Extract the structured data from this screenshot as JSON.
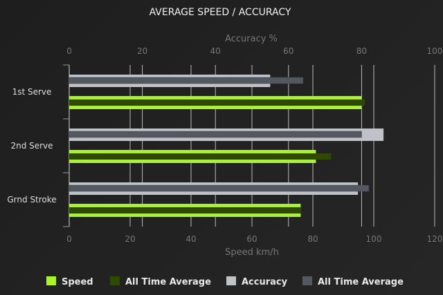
{
  "chart_data": {
    "type": "bar",
    "orientation": "horizontal",
    "title": "AVERAGE SPEED / ACCURACY",
    "categories": [
      "1st Serve",
      "2nd Serve",
      "Grnd Stroke"
    ],
    "x_bottom": {
      "label": "Speed km/h",
      "range": [
        0,
        120
      ],
      "ticks": [
        "0",
        "20",
        "40",
        "60",
        "80",
        "100",
        "120"
      ]
    },
    "x_top": {
      "label": "Accuracy %",
      "range": [
        0,
        100
      ],
      "ticks": [
        "0",
        "20",
        "40",
        "60",
        "80",
        "100"
      ]
    },
    "grid": true,
    "legend_position": "bottom",
    "series": [
      {
        "name": "Speed",
        "axis": "speed",
        "color": "#a8f428",
        "values": [
          96,
          81,
          76
        ]
      },
      {
        "name": "All Time Average",
        "axis": "speed",
        "color": "#2e4a00",
        "values": [
          97,
          86,
          76
        ]
      },
      {
        "name": "Accuracy",
        "axis": "accuracy",
        "color": "#bfc3c7",
        "values": [
          55,
          86,
          79
        ]
      },
      {
        "name": "All Time Average",
        "axis": "accuracy",
        "color": "#545961",
        "values": [
          64,
          80,
          82
        ]
      }
    ]
  }
}
